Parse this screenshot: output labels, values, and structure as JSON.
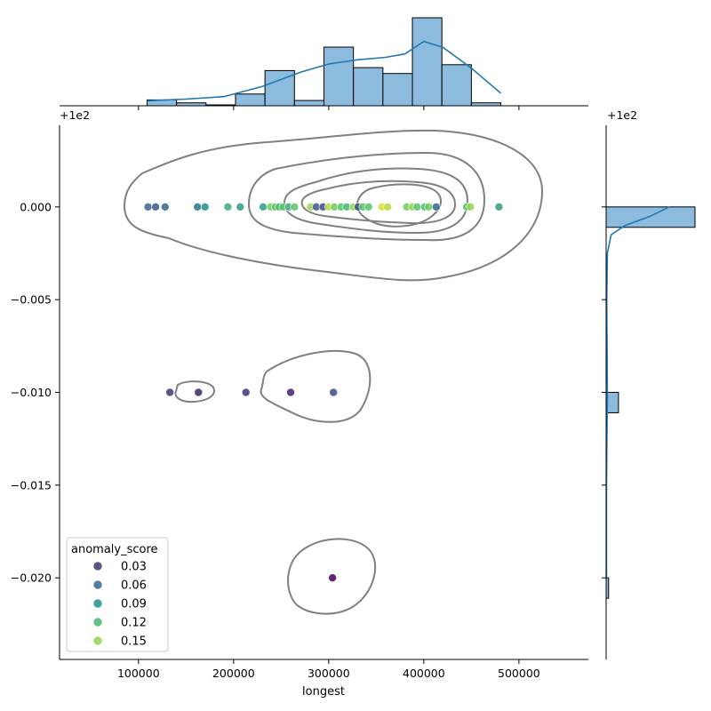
{
  "chart_data": {
    "type": "scatter",
    "title": "",
    "xlabel": "longest",
    "ylabel": "",
    "xlim": [
      17000,
      573000
    ],
    "ylim": [
      -0.0244,
      0.0044
    ],
    "offset_label": "+1e2",
    "x_ticks": [
      100000,
      200000,
      300000,
      400000,
      500000
    ],
    "x_tick_labels": [
      "100000",
      "200000",
      "300000",
      "400000",
      "500000"
    ],
    "y_ticks": [
      0.0,
      -0.005,
      -0.01,
      -0.015,
      -0.02
    ],
    "y_tick_labels": [
      "0.000",
      "−0.005",
      "−0.010",
      "−0.015",
      "−0.020"
    ],
    "hue_label": "anomaly_score",
    "legend": [
      {
        "label": "0.03",
        "value": 0.03
      },
      {
        "label": "0.06",
        "value": 0.06
      },
      {
        "label": "0.09",
        "value": 0.09
      },
      {
        "label": "0.12",
        "value": 0.12
      },
      {
        "label": "0.15",
        "value": 0.15
      }
    ],
    "points": [
      {
        "x": 110000,
        "y": 0.0,
        "score": 0.06
      },
      {
        "x": 118000,
        "y": 0.0,
        "score": 0.05
      },
      {
        "x": 128000,
        "y": 0.0,
        "score": 0.06
      },
      {
        "x": 162000,
        "y": 0.0,
        "score": 0.07
      },
      {
        "x": 170000,
        "y": 0.0,
        "score": 0.09
      },
      {
        "x": 194000,
        "y": 0.0,
        "score": 0.11
      },
      {
        "x": 207000,
        "y": 0.0,
        "score": 0.1
      },
      {
        "x": 231000,
        "y": 0.0,
        "score": 0.1
      },
      {
        "x": 239000,
        "y": 0.0,
        "score": 0.14
      },
      {
        "x": 244000,
        "y": 0.0,
        "score": 0.13
      },
      {
        "x": 248000,
        "y": 0.0,
        "score": 0.12
      },
      {
        "x": 252000,
        "y": 0.0,
        "score": 0.13
      },
      {
        "x": 258000,
        "y": 0.0,
        "score": 0.11
      },
      {
        "x": 264000,
        "y": 0.0,
        "score": 0.13
      },
      {
        "x": 281000,
        "y": 0.0,
        "score": 0.15
      },
      {
        "x": 287000,
        "y": 0.0,
        "score": 0.05
      },
      {
        "x": 294000,
        "y": 0.0,
        "score": 0.04
      },
      {
        "x": 300000,
        "y": 0.0,
        "score": 0.16
      },
      {
        "x": 306000,
        "y": 0.0,
        "score": 0.14
      },
      {
        "x": 313000,
        "y": 0.0,
        "score": 0.13
      },
      {
        "x": 319000,
        "y": 0.0,
        "score": 0.12
      },
      {
        "x": 326000,
        "y": 0.0,
        "score": 0.15
      },
      {
        "x": 331000,
        "y": 0.0,
        "score": 0.04
      },
      {
        "x": 336000,
        "y": 0.0,
        "score": 0.13
      },
      {
        "x": 342000,
        "y": 0.0,
        "score": 0.13
      },
      {
        "x": 356000,
        "y": 0.0,
        "score": 0.17
      },
      {
        "x": 362000,
        "y": 0.0,
        "score": 0.16
      },
      {
        "x": 382000,
        "y": 0.0,
        "score": 0.14
      },
      {
        "x": 388000,
        "y": 0.0,
        "score": 0.15
      },
      {
        "x": 393000,
        "y": 0.0,
        "score": 0.13
      },
      {
        "x": 401000,
        "y": 0.0,
        "score": 0.12
      },
      {
        "x": 405000,
        "y": 0.0,
        "score": 0.14
      },
      {
        "x": 413000,
        "y": 0.0,
        "score": 0.06
      },
      {
        "x": 445000,
        "y": 0.0,
        "score": 0.13
      },
      {
        "x": 449000,
        "y": 0.0,
        "score": 0.15
      },
      {
        "x": 479000,
        "y": 0.0,
        "score": 0.1
      },
      {
        "x": 133000,
        "y": -0.01,
        "score": 0.03
      },
      {
        "x": 163000,
        "y": -0.01,
        "score": 0.02
      },
      {
        "x": 213000,
        "y": -0.01,
        "score": 0.03
      },
      {
        "x": 260000,
        "y": -0.01,
        "score": 0.02
      },
      {
        "x": 305000,
        "y": -0.01,
        "score": 0.04
      },
      {
        "x": 304000,
        "y": -0.02,
        "score": 0.0
      }
    ],
    "x_histogram": {
      "bin_edges": [
        109000,
        140000,
        171000,
        202000,
        233000,
        264000,
        295000,
        326000,
        357000,
        388000,
        419000,
        450000,
        481000
      ],
      "counts": [
        2,
        1,
        0.3,
        4,
        12,
        1.8,
        20,
        13,
        11,
        30,
        14,
        1
      ]
    },
    "y_histogram": {
      "bins": [
        {
          "y_low": -0.0011,
          "y_high": 0.0,
          "count": 36
        },
        {
          "y_low": -0.0111,
          "y_high": -0.01,
          "count": 5
        },
        {
          "y_low": -0.0211,
          "y_high": -0.02,
          "count": 1
        }
      ]
    },
    "kde_x": [
      [
        109000,
        0.06
      ],
      [
        150000,
        0.08
      ],
      [
        190000,
        0.11
      ],
      [
        230000,
        0.23
      ],
      [
        270000,
        0.4
      ],
      [
        300000,
        0.5
      ],
      [
        330000,
        0.55
      ],
      [
        360000,
        0.58
      ],
      [
        380000,
        0.62
      ],
      [
        400000,
        0.77
      ],
      [
        420000,
        0.7
      ],
      [
        450000,
        0.45
      ],
      [
        481000,
        0.15
      ]
    ],
    "kde_y": [
      [
        0.0,
        1.0
      ],
      [
        -0.0005,
        0.7
      ],
      [
        -0.001,
        0.3
      ],
      [
        -0.0015,
        0.08
      ],
      [
        -0.0025,
        0.02
      ],
      [
        -0.005,
        0.01
      ],
      [
        -0.01,
        0.02
      ],
      [
        -0.015,
        0.005
      ],
      [
        -0.02,
        0.005
      ]
    ]
  }
}
